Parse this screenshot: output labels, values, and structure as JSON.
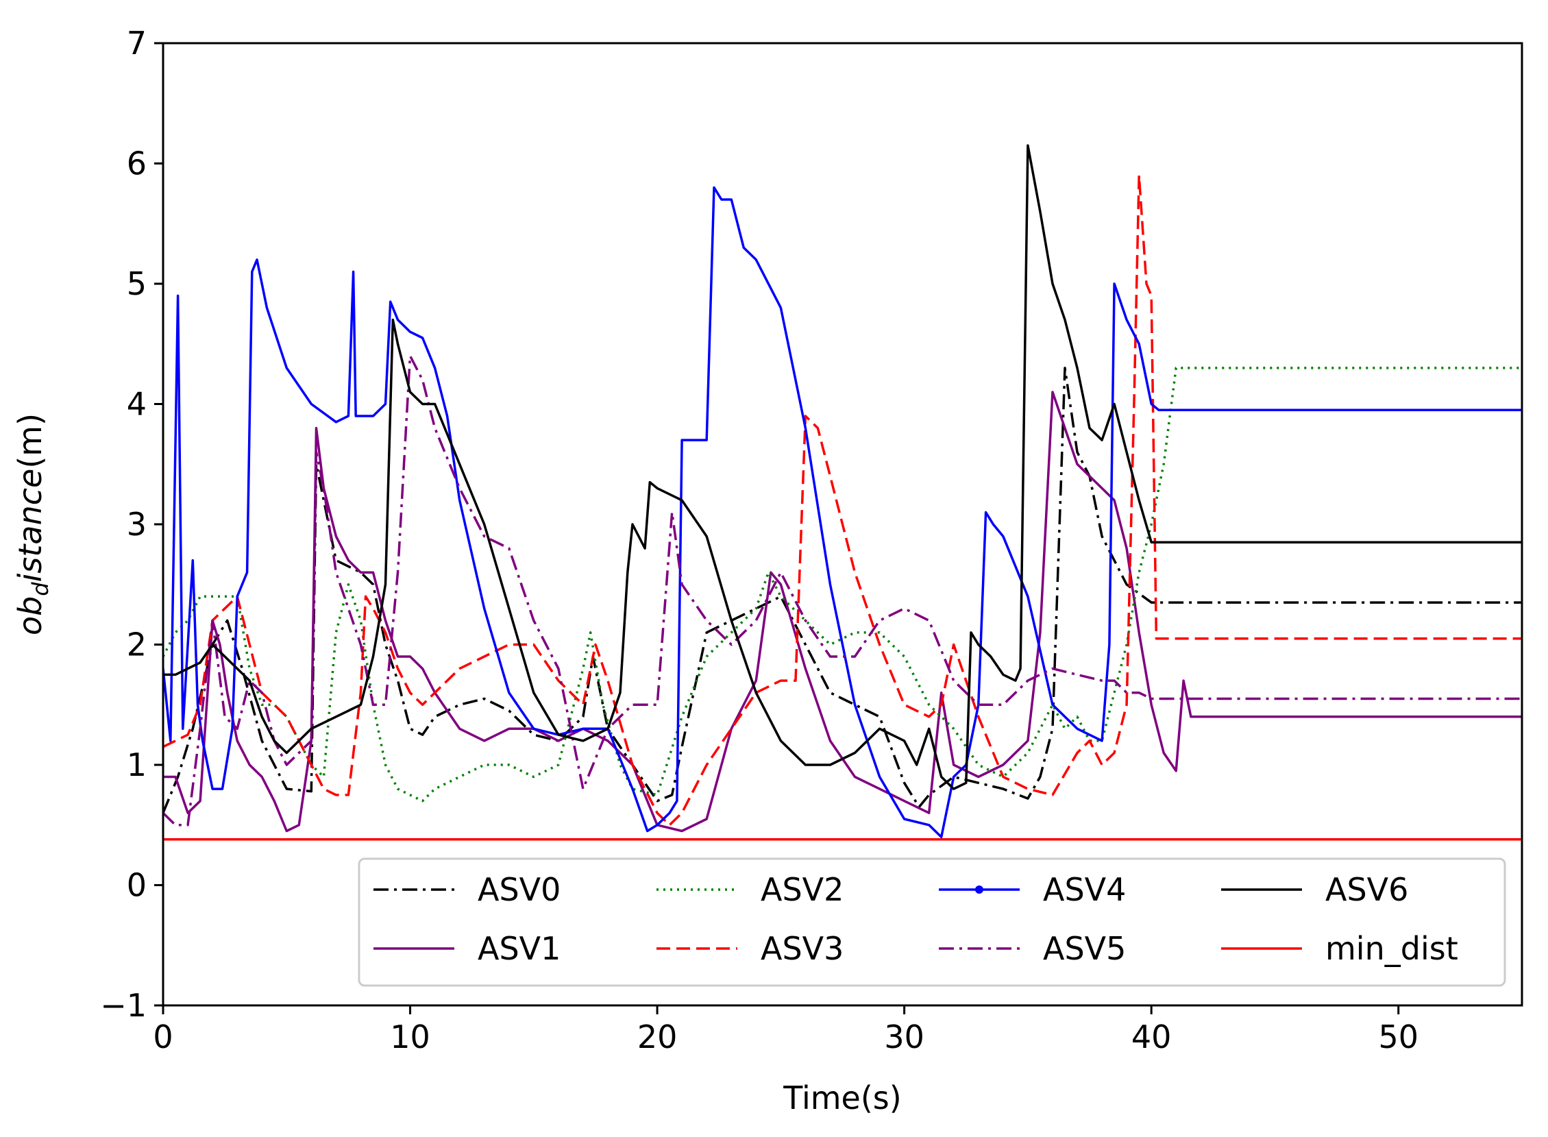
{
  "chart_data": {
    "type": "line",
    "title": "",
    "xlabel": "Time(s)",
    "ylabel_prefix": "ob",
    "ylabel_subscript": "d",
    "ylabel_suffix": "istance(m)",
    "xlim": [
      0,
      55
    ],
    "ylim": [
      -1,
      7
    ],
    "xticks": [
      0,
      10,
      20,
      30,
      40,
      50
    ],
    "yticks": [
      -1,
      0,
      1,
      2,
      3,
      4,
      5,
      6,
      7
    ],
    "xtick_labels": [
      "0",
      "10",
      "20",
      "30",
      "40",
      "50"
    ],
    "ytick_labels": [
      "−1",
      "0",
      "1",
      "2",
      "3",
      "4",
      "5",
      "6",
      "7"
    ],
    "legend_position": "lower-right",
    "series": [
      {
        "name": "ASV0",
        "color": "#000000",
        "dash": "dashdot",
        "label": "ASV0",
        "x": [
          0,
          0.6,
          1.2,
          2.0,
          2.6,
          3.2,
          4.0,
          5.0,
          6.0,
          6.2,
          6.5,
          7.0,
          8.0,
          8.5,
          9.0,
          9.5,
          10.0,
          10.5,
          11,
          12,
          13,
          14,
          15,
          16,
          17,
          17.4,
          18,
          19,
          20,
          20.6,
          21,
          22,
          23,
          24,
          25,
          26,
          27,
          28,
          29,
          30,
          30.6,
          31,
          32,
          33,
          34,
          35,
          35.5,
          36,
          36.5,
          37,
          37.5,
          38,
          39,
          40,
          41,
          55
        ],
        "y": [
          0.6,
          0.9,
          1.3,
          2.0,
          2.2,
          1.8,
          1.2,
          0.8,
          0.78,
          3.5,
          3.2,
          2.7,
          2.6,
          2.5,
          2.0,
          1.7,
          1.3,
          1.25,
          1.4,
          1.5,
          1.55,
          1.45,
          1.25,
          1.2,
          1.4,
          1.9,
          1.3,
          1.0,
          0.7,
          0.75,
          1.15,
          2.1,
          2.2,
          2.3,
          2.4,
          2.0,
          1.6,
          1.5,
          1.4,
          0.85,
          0.65,
          0.75,
          0.9,
          0.85,
          0.8,
          0.72,
          0.9,
          1.3,
          4.3,
          3.6,
          3.4,
          2.9,
          2.5,
          2.35,
          2.35,
          2.35
        ]
      },
      {
        "name": "ASV1",
        "color": "#800080",
        "dash": "solid",
        "label": "ASV1",
        "x": [
          0,
          0.5,
          1.0,
          1.5,
          2.0,
          2.3,
          2.6,
          3.0,
          3.5,
          4.0,
          4.5,
          5.0,
          5.5,
          6.0,
          6.2,
          6.5,
          7.0,
          7.5,
          8,
          8.5,
          9,
          9.5,
          10,
          10.5,
          11,
          12,
          13,
          14,
          15,
          16,
          17,
          18,
          19,
          20,
          21,
          22,
          23,
          24,
          24.6,
          25,
          26,
          27,
          28,
          29,
          30,
          30.5,
          31,
          31.5,
          32,
          33,
          34,
          35,
          35.5,
          36,
          37,
          38,
          38.5,
          39,
          39.5,
          40,
          40.5,
          41,
          41.3,
          41.6,
          41.8,
          55
        ],
        "y": [
          0.9,
          0.9,
          0.6,
          0.7,
          2.2,
          2.0,
          1.6,
          1.2,
          1.0,
          0.9,
          0.7,
          0.45,
          0.5,
          1.2,
          3.8,
          3.3,
          2.9,
          2.7,
          2.6,
          2.6,
          2.2,
          1.9,
          1.9,
          1.8,
          1.6,
          1.3,
          1.2,
          1.3,
          1.3,
          1.2,
          1.3,
          1.2,
          1.0,
          0.5,
          0.45,
          0.55,
          1.3,
          1.7,
          2.6,
          2.5,
          1.8,
          1.2,
          0.9,
          0.8,
          0.7,
          0.65,
          0.6,
          1.6,
          1.0,
          0.9,
          1.0,
          1.2,
          2.1,
          4.1,
          3.5,
          3.3,
          3.2,
          2.8,
          2.1,
          1.5,
          1.1,
          0.95,
          1.7,
          1.4,
          1.4,
          1.4
        ]
      },
      {
        "name": "ASV2",
        "color": "#008000",
        "dash": "dotted",
        "label": "ASV2",
        "x": [
          0,
          0.5,
          1.0,
          1.5,
          2.0,
          2.5,
          3.0,
          3.5,
          4.0,
          4.5,
          5.0,
          5.5,
          6.0,
          6.5,
          7.0,
          7.5,
          8.0,
          8.5,
          9,
          9.5,
          10,
          10.5,
          11,
          12,
          13,
          14,
          15,
          16,
          17,
          17.3,
          17.8,
          18.5,
          19,
          20,
          21,
          22,
          23,
          24,
          24.5,
          25,
          26,
          27,
          28,
          29,
          30,
          31,
          32,
          33,
          34,
          35,
          36,
          36.5,
          37,
          37.5,
          38,
          38.5,
          39,
          39.5,
          40,
          40.5,
          41,
          55
        ],
        "y": [
          1.9,
          2.1,
          2.2,
          2.4,
          2.4,
          2.4,
          2.4,
          1.8,
          1.5,
          1.5,
          1.4,
          1.2,
          1.0,
          0.9,
          2.1,
          2.5,
          2.2,
          1.5,
          1.0,
          0.8,
          0.75,
          0.7,
          0.8,
          0.9,
          1.0,
          1.0,
          0.9,
          1.0,
          1.8,
          2.1,
          1.5,
          1.0,
          0.8,
          0.75,
          1.4,
          1.9,
          2.1,
          2.3,
          2.6,
          2.4,
          2.2,
          2.0,
          2.1,
          2.1,
          1.9,
          1.5,
          1.3,
          1.0,
          0.9,
          1.1,
          1.5,
          1.3,
          1.4,
          1.2,
          1.2,
          1.6,
          2.0,
          2.6,
          3.0,
          3.5,
          4.3,
          4.3
        ]
      },
      {
        "name": "ASV3",
        "color": "#ff0000",
        "dash": "dashed",
        "label": "ASV3",
        "x": [
          0,
          0.5,
          1.0,
          1.5,
          2.0,
          2.5,
          3.0,
          3.5,
          4.0,
          4.5,
          5.0,
          5.5,
          6.0,
          6.5,
          7.0,
          7.5,
          8.0,
          8.2,
          8.5,
          9,
          9.5,
          10,
          10.5,
          11,
          12,
          13,
          14,
          15,
          16,
          17,
          17.5,
          18,
          19,
          20,
          20.5,
          21,
          22,
          23,
          24,
          25,
          25.6,
          26,
          26.5,
          27,
          28,
          29,
          30,
          31,
          31.5,
          32,
          33,
          34,
          35,
          36,
          37,
          37.5,
          38,
          38.5,
          39,
          39.3,
          39.5,
          39.8,
          40,
          40.2,
          40.5,
          55
        ],
        "y": [
          1.15,
          1.2,
          1.25,
          1.5,
          2.2,
          2.3,
          2.4,
          2.0,
          1.6,
          1.5,
          1.4,
          1.2,
          1.0,
          0.8,
          0.75,
          0.75,
          1.6,
          2.4,
          2.3,
          2.1,
          1.8,
          1.6,
          1.5,
          1.6,
          1.8,
          1.9,
          2.0,
          2.0,
          1.7,
          1.5,
          2.0,
          1.7,
          1.0,
          0.6,
          0.5,
          0.6,
          1.0,
          1.3,
          1.6,
          1.7,
          1.7,
          3.9,
          3.8,
          3.4,
          2.6,
          2.0,
          1.5,
          1.4,
          1.5,
          2.0,
          1.4,
          0.9,
          0.8,
          0.75,
          1.1,
          1.2,
          1.0,
          1.1,
          1.5,
          4.0,
          5.9,
          5.0,
          4.9,
          2.05,
          2.05,
          2.05
        ]
      },
      {
        "name": "ASV4",
        "color": "#0000ff",
        "dash": "solid",
        "label": "ASV4",
        "x": [
          0,
          0.3,
          0.6,
          0.8,
          1.0,
          1.2,
          1.4,
          1.6,
          2.0,
          2.4,
          2.8,
          3.0,
          3.4,
          3.6,
          3.8,
          4.2,
          5,
          6,
          7,
          7.5,
          7.7,
          7.8,
          8,
          8.5,
          9,
          9.2,
          9.5,
          10,
          10.5,
          11,
          11.5,
          12,
          13,
          14,
          15,
          16,
          17,
          18,
          19,
          19.6,
          20,
          20.5,
          20.8,
          21,
          22,
          22.3,
          22.6,
          23,
          23.5,
          24,
          25,
          26,
          27,
          28,
          29,
          30,
          31,
          31.5,
          32,
          32.5,
          33,
          33.3,
          33.6,
          34,
          35,
          36,
          37,
          38,
          38.3,
          38.5,
          39,
          39.5,
          40,
          40.3,
          55
        ],
        "y": [
          1.8,
          1.2,
          4.9,
          1.3,
          2.0,
          2.7,
          1.5,
          1.2,
          0.8,
          0.8,
          1.3,
          2.4,
          2.6,
          5.1,
          5.2,
          4.8,
          4.3,
          4.0,
          3.85,
          3.9,
          5.1,
          3.9,
          3.9,
          3.9,
          4.0,
          4.85,
          4.7,
          4.6,
          4.55,
          4.3,
          3.9,
          3.2,
          2.3,
          1.6,
          1.3,
          1.25,
          1.3,
          1.3,
          0.8,
          0.45,
          0.5,
          0.6,
          0.7,
          3.7,
          3.7,
          5.8,
          5.7,
          5.7,
          5.3,
          5.2,
          4.8,
          3.8,
          2.5,
          1.5,
          0.9,
          0.55,
          0.5,
          0.4,
          0.9,
          1.0,
          1.5,
          3.1,
          3.0,
          2.9,
          2.4,
          1.5,
          1.3,
          1.2,
          2.0,
          5.0,
          4.7,
          4.5,
          4.0,
          3.95,
          3.95
        ]
      },
      {
        "name": "ASV5",
        "color": "#800080",
        "dash": "dashdot",
        "label": "ASV5",
        "x": [
          0,
          0.5,
          1.0,
          1.5,
          2.0,
          2.5,
          3.0,
          3.5,
          4.0,
          4.5,
          5.0,
          6.0,
          6.2,
          6.5,
          7.0,
          7.5,
          8,
          8.5,
          9,
          9.5,
          10,
          10.5,
          11,
          12,
          13,
          14,
          15,
          16,
          17,
          18,
          19,
          20,
          20.6,
          21,
          22,
          23,
          24,
          25,
          26,
          27,
          28,
          29,
          30,
          31,
          32,
          33,
          34,
          35,
          36,
          37,
          38,
          38.5,
          39,
          39.5,
          40,
          40.5,
          41,
          55
        ],
        "y": [
          0.6,
          0.5,
          0.5,
          1.3,
          2.2,
          1.4,
          1.3,
          1.7,
          1.6,
          1.2,
          1.0,
          1.2,
          3.6,
          3.3,
          2.6,
          2.3,
          2.0,
          1.5,
          1.5,
          2.6,
          4.4,
          4.2,
          3.8,
          3.3,
          2.9,
          2.8,
          2.2,
          1.8,
          0.8,
          1.3,
          1.5,
          1.5,
          3.1,
          2.5,
          2.2,
          2.0,
          2.2,
          2.6,
          2.2,
          1.9,
          1.9,
          2.2,
          2.3,
          2.2,
          1.7,
          1.5,
          1.5,
          1.7,
          1.8,
          1.75,
          1.7,
          1.7,
          1.6,
          1.6,
          1.55,
          1.55,
          1.55,
          1.55
        ]
      },
      {
        "name": "ASV6",
        "color": "#000000",
        "dash": "solid",
        "label": "ASV6",
        "x": [
          0,
          0.5,
          1.0,
          1.5,
          2.0,
          2.5,
          3.0,
          3.5,
          4.0,
          4.5,
          5.0,
          6.0,
          7.0,
          8.0,
          8.5,
          9.0,
          9.3,
          9.5,
          10,
          10.5,
          11,
          12,
          13,
          14,
          15,
          16,
          17,
          18,
          18.5,
          18.8,
          19,
          19.5,
          19.7,
          20,
          21,
          22,
          23,
          24,
          25,
          26,
          27,
          28,
          29,
          30,
          30.5,
          31,
          31.5,
          32,
          32.5,
          32.7,
          33,
          33.5,
          34,
          34.5,
          34.7,
          35,
          35.5,
          36,
          36.5,
          37,
          37.5,
          38,
          38.5,
          39,
          39.5,
          40,
          40.2,
          41,
          55
        ],
        "y": [
          1.75,
          1.75,
          1.8,
          1.85,
          2.0,
          1.9,
          1.8,
          1.7,
          1.4,
          1.2,
          1.1,
          1.3,
          1.4,
          1.5,
          1.9,
          2.5,
          4.7,
          4.5,
          4.1,
          4.0,
          4.0,
          3.5,
          3.0,
          2.3,
          1.6,
          1.25,
          1.2,
          1.3,
          1.6,
          2.6,
          3.0,
          2.8,
          3.35,
          3.3,
          3.2,
          2.9,
          2.2,
          1.6,
          1.2,
          1.0,
          1.0,
          1.1,
          1.3,
          1.2,
          1.0,
          1.3,
          0.9,
          0.8,
          0.85,
          2.1,
          2.0,
          1.9,
          1.75,
          1.7,
          1.8,
          6.15,
          5.6,
          5.0,
          4.7,
          4.3,
          3.8,
          3.7,
          4.0,
          3.6,
          3.2,
          2.85,
          2.85,
          2.85,
          2.85
        ]
      },
      {
        "name": "min_dist",
        "color": "#ff0000",
        "dash": "solid",
        "label": "min_dist",
        "x": [
          0,
          55
        ],
        "y": [
          0.38,
          0.38
        ]
      }
    ]
  }
}
